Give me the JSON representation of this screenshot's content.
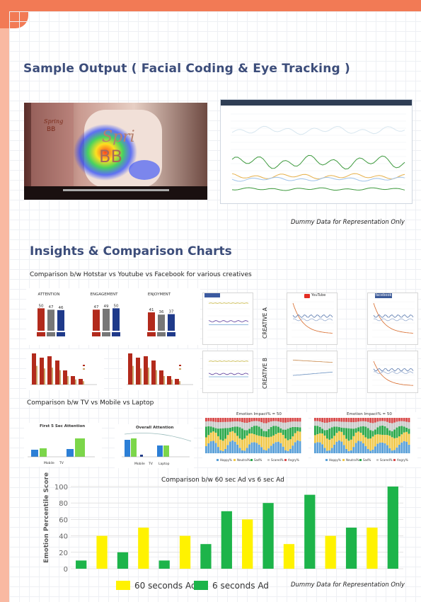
{
  "header": {
    "title": "Sample Output ( Facial Coding & Eye Tracking )"
  },
  "section2": {
    "title": "Insights & Comparison Charts"
  },
  "captions": {
    "hotstar": "Comparison b/w Hotstar vs Youtube vs Facebook for various creatives",
    "tv": "Comparison b/w TV vs Mobile vs Laptop",
    "ad": "Comparison b/w 60 sec Ad vs 6 sec Ad"
  },
  "notes": {
    "dummy": "Dummy Data for Representation Only"
  },
  "creative_labels": {
    "a": "CREATIVE A",
    "b": "CREATIVE B"
  },
  "video": {
    "brand_line1": "Spring",
    "brand_line2": "BB"
  },
  "engagement_panel": {
    "titles": [
      "ATTENTION",
      "ENGAGEMENT",
      "ENJOYMENT"
    ],
    "values": [
      [
        50,
        47,
        46
      ],
      [
        47,
        49,
        50
      ],
      [
        41,
        36,
        37
      ]
    ],
    "platforms": [
      "hotstar",
      "YouTube",
      "facebook"
    ],
    "colors": [
      "#b22a1c",
      "#777777",
      "#1f3a8a"
    ]
  },
  "platform_logos": [
    "YouTube",
    "facebook"
  ],
  "tv_panel": {
    "title1": "First 5 Sec Attention",
    "title2": "Overall Attention",
    "legend1": [
      "Mobile",
      "TV"
    ],
    "legend2": [
      "Mobile",
      "TV",
      "Laptop"
    ]
  },
  "emotion_panel": {
    "title1": "Emotion Impact% = 50",
    "title2": "Emotion Impact% = 50",
    "legend": [
      "Happy%",
      "Neutral%",
      "Sad%",
      "Scared%",
      "Angry%"
    ]
  },
  "colors": {
    "yellow": "#fff200",
    "green": "#1db44a",
    "accent": "#f27a55",
    "heading": "#3c4d7a"
  },
  "chart_data": {
    "type": "bar",
    "title": "",
    "xlabel": "",
    "ylabel": "Emotion Percentile Score",
    "ylim": [
      0,
      100
    ],
    "yticks": [
      0,
      20,
      40,
      60,
      80,
      100
    ],
    "grid": true,
    "legend_position": "bottom",
    "series": [
      {
        "name": "60 seconds Ad",
        "color": "#fff200"
      },
      {
        "name": "6 seconds Ad",
        "color": "#1db44a"
      }
    ],
    "bars": [
      {
        "series": 1,
        "value": 10
      },
      {
        "series": 0,
        "value": 40
      },
      {
        "series": 1,
        "value": 20
      },
      {
        "series": 0,
        "value": 50
      },
      {
        "series": 1,
        "value": 10
      },
      {
        "series": 0,
        "value": 40
      },
      {
        "series": 1,
        "value": 30
      },
      {
        "series": 1,
        "value": 70
      },
      {
        "series": 0,
        "value": 60
      },
      {
        "series": 1,
        "value": 80
      },
      {
        "series": 0,
        "value": 30
      },
      {
        "series": 1,
        "value": 90
      },
      {
        "series": 0,
        "value": 40
      },
      {
        "series": 1,
        "value": 50
      },
      {
        "series": 0,
        "value": 50
      },
      {
        "series": 1,
        "value": 100
      }
    ]
  }
}
